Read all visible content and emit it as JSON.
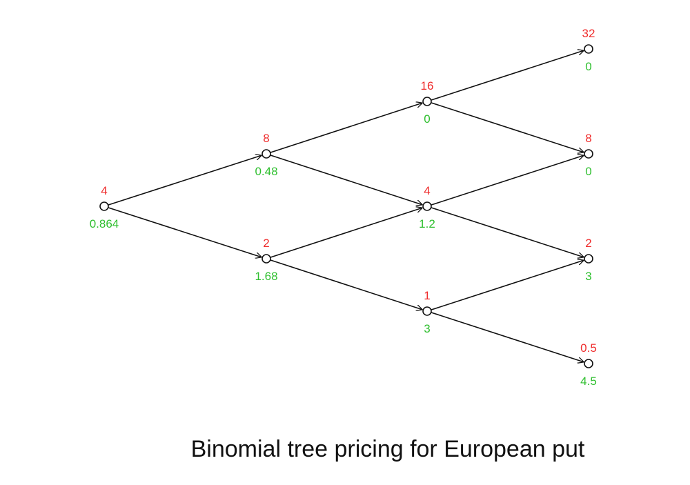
{
  "colors": {
    "price": "#ef2b2b",
    "option_value": "#2fbf2f",
    "line": "#111111"
  },
  "tree": {
    "nodes": [
      {
        "id": "n0",
        "step": 0,
        "level": 0,
        "price": "4",
        "value": "0.864"
      },
      {
        "id": "n1u",
        "step": 1,
        "level": 1,
        "price": "8",
        "value": "0.48"
      },
      {
        "id": "n1d",
        "step": 1,
        "level": -1,
        "price": "2",
        "value": "1.68"
      },
      {
        "id": "n2uu",
        "step": 2,
        "level": 2,
        "price": "16",
        "value": "0"
      },
      {
        "id": "n2ud",
        "step": 2,
        "level": 0,
        "price": "4",
        "value": "1.2"
      },
      {
        "id": "n2dd",
        "step": 2,
        "level": -2,
        "price": "1",
        "value": "3"
      },
      {
        "id": "n3a",
        "step": 3,
        "level": 3,
        "price": "32",
        "value": "0"
      },
      {
        "id": "n3b",
        "step": 3,
        "level": 1,
        "price": "8",
        "value": "0"
      },
      {
        "id": "n3c",
        "step": 3,
        "level": -1,
        "price": "2",
        "value": "3"
      },
      {
        "id": "n3d",
        "step": 3,
        "level": -3,
        "price": "0.5",
        "value": "4.5"
      }
    ],
    "edges": [
      [
        "n0",
        "n1u"
      ],
      [
        "n0",
        "n1d"
      ],
      [
        "n1u",
        "n2uu"
      ],
      [
        "n1u",
        "n2ud"
      ],
      [
        "n1d",
        "n2ud"
      ],
      [
        "n1d",
        "n2dd"
      ],
      [
        "n2uu",
        "n3a"
      ],
      [
        "n2uu",
        "n3b"
      ],
      [
        "n2ud",
        "n3b"
      ],
      [
        "n2ud",
        "n3c"
      ],
      [
        "n2dd",
        "n3c"
      ],
      [
        "n2dd",
        "n3d"
      ]
    ]
  },
  "caption": "Binomial tree pricing for European put"
}
